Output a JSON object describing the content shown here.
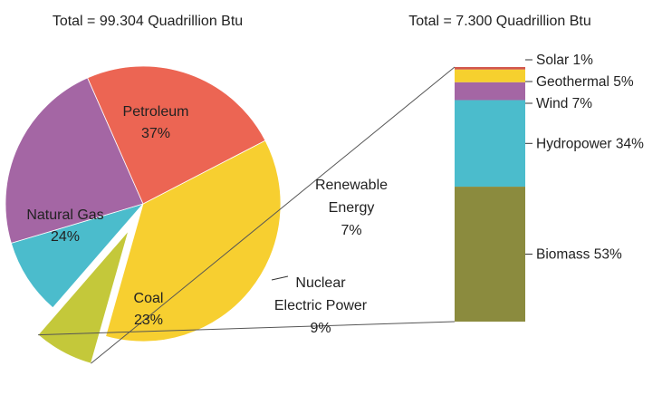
{
  "chart_data": [
    {
      "type": "pie",
      "title": "Total = 99.304 Quadrillion Btu",
      "slices": [
        {
          "label": "Petroleum",
          "value": 37,
          "value_text": "37%",
          "color": "#f7cf30"
        },
        {
          "label": "Renewable Energy",
          "value": 7,
          "value_text": "7%",
          "color": "#c4c83a"
        },
        {
          "label": "Nuclear Electric Power",
          "value": 9,
          "value_text": "9%",
          "color": "#4bbccc"
        },
        {
          "label": "Coal",
          "value": 23,
          "value_text": "23%",
          "color": "#a466a4"
        },
        {
          "label": "Natural Gas",
          "value": 24,
          "value_text": "24%",
          "color": "#ec6553"
        }
      ],
      "exploded": "Renewable Energy"
    },
    {
      "type": "bar",
      "stacked": true,
      "title": "Total = 7.300 Quadrillion Btu",
      "segments": [
        {
          "label": "Solar",
          "value": 1,
          "value_text": "1%",
          "color": "#d2574c"
        },
        {
          "label": "Geothermal",
          "value": 5,
          "value_text": "5%",
          "color": "#f6d02e"
        },
        {
          "label": "Wind",
          "value": 7,
          "value_text": "7%",
          "color": "#a466a4"
        },
        {
          "label": "Hydropower",
          "value": 34,
          "value_text": "34%",
          "color": "#4bbccc"
        },
        {
          "label": "Biomass",
          "value": 53,
          "value_text": "53%",
          "color": "#8b8b3e"
        }
      ]
    }
  ]
}
